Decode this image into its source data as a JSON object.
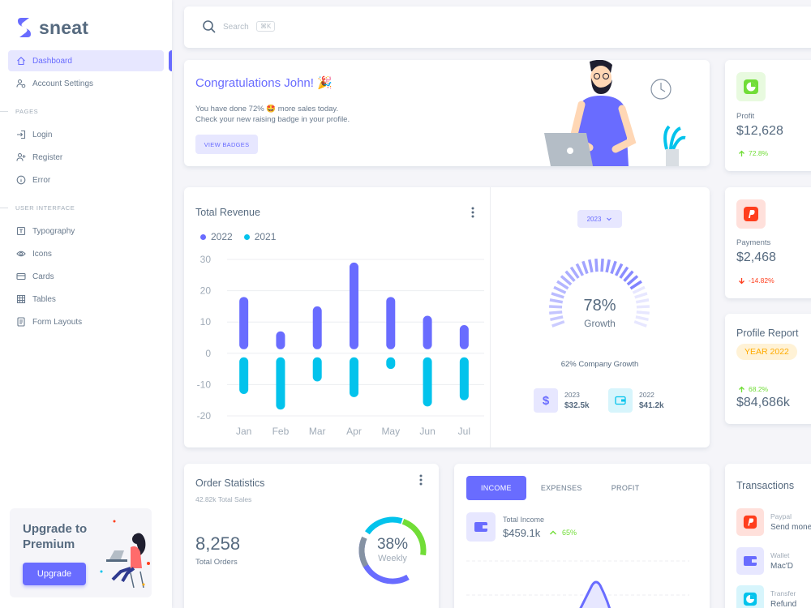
{
  "brand": {
    "name": "sneat"
  },
  "sidebar": {
    "items": [
      {
        "label": "Dashboard"
      },
      {
        "label": "Account Settings"
      },
      {
        "label": "Login"
      },
      {
        "label": "Register"
      },
      {
        "label": "Error"
      },
      {
        "label": "Typography"
      },
      {
        "label": "Icons"
      },
      {
        "label": "Cards"
      },
      {
        "label": "Tables"
      },
      {
        "label": "Form Layouts"
      }
    ],
    "headers": {
      "pages": "PAGES",
      "ui": "USER INTERFACE"
    },
    "upgrade": {
      "title": "Upgrade to Premium",
      "button": "Upgrade"
    }
  },
  "search": {
    "placeholder": "Search",
    "shortcut": "⌘K"
  },
  "congrats": {
    "title": "Congratulations John! 🎉",
    "line1": "You have done 72% 🤩 more sales today.",
    "line2": "Check your new raising badge in your profile.",
    "button": "VIEW BADGES"
  },
  "profit": {
    "label": "Profit",
    "value": "$12,628",
    "change": "72.8%"
  },
  "payments": {
    "label": "Payments",
    "value": "$2,468",
    "change": "-14.82%"
  },
  "revenue": {
    "title": "Total Revenue",
    "year_select": "2023",
    "growth_percent": "78%",
    "growth_label": "Growth",
    "company_growth": "62% Company Growth",
    "mini": [
      {
        "year": "2023",
        "value": "$32.5k"
      },
      {
        "year": "2022",
        "value": "$41.2k"
      }
    ]
  },
  "chart_data": {
    "type": "bar",
    "title": "Total Revenue",
    "categories": [
      "Jan",
      "Feb",
      "Mar",
      "Apr",
      "May",
      "Jun",
      "Jul"
    ],
    "series": [
      {
        "name": "2022",
        "values": [
          18,
          7,
          15,
          29,
          18,
          12,
          9
        ],
        "color": "#696cff"
      },
      {
        "name": "2021",
        "values": [
          -13,
          -18,
          -9,
          -14,
          -5,
          -17,
          -15
        ],
        "color": "#03c3ec"
      }
    ],
    "yticks": [
      "30",
      "20",
      "10",
      "0",
      "-10",
      "-20"
    ],
    "ylim": [
      -20,
      30
    ],
    "grid": true,
    "legend": "top-left"
  },
  "profile_report": {
    "title": "Profile Report",
    "badge": "YEAR 2022",
    "change": "68.2%",
    "value": "$84,686k"
  },
  "order_stats": {
    "title": "Order Statistics",
    "subtitle": "42.82k Total Sales",
    "value": "8,258",
    "label": "Total Orders",
    "donut_percent": "38%",
    "donut_label": "Weekly"
  },
  "income": {
    "tabs": [
      "INCOME",
      "EXPENSES",
      "PROFIT"
    ],
    "label": "Total Income",
    "value": "$459.1k",
    "change": "65%"
  },
  "transactions": {
    "title": "Transactions",
    "items": [
      {
        "source": "Paypal",
        "desc": "Send money"
      },
      {
        "source": "Wallet",
        "desc": "Mac'D"
      },
      {
        "source": "Transfer",
        "desc": "Refund"
      }
    ]
  }
}
